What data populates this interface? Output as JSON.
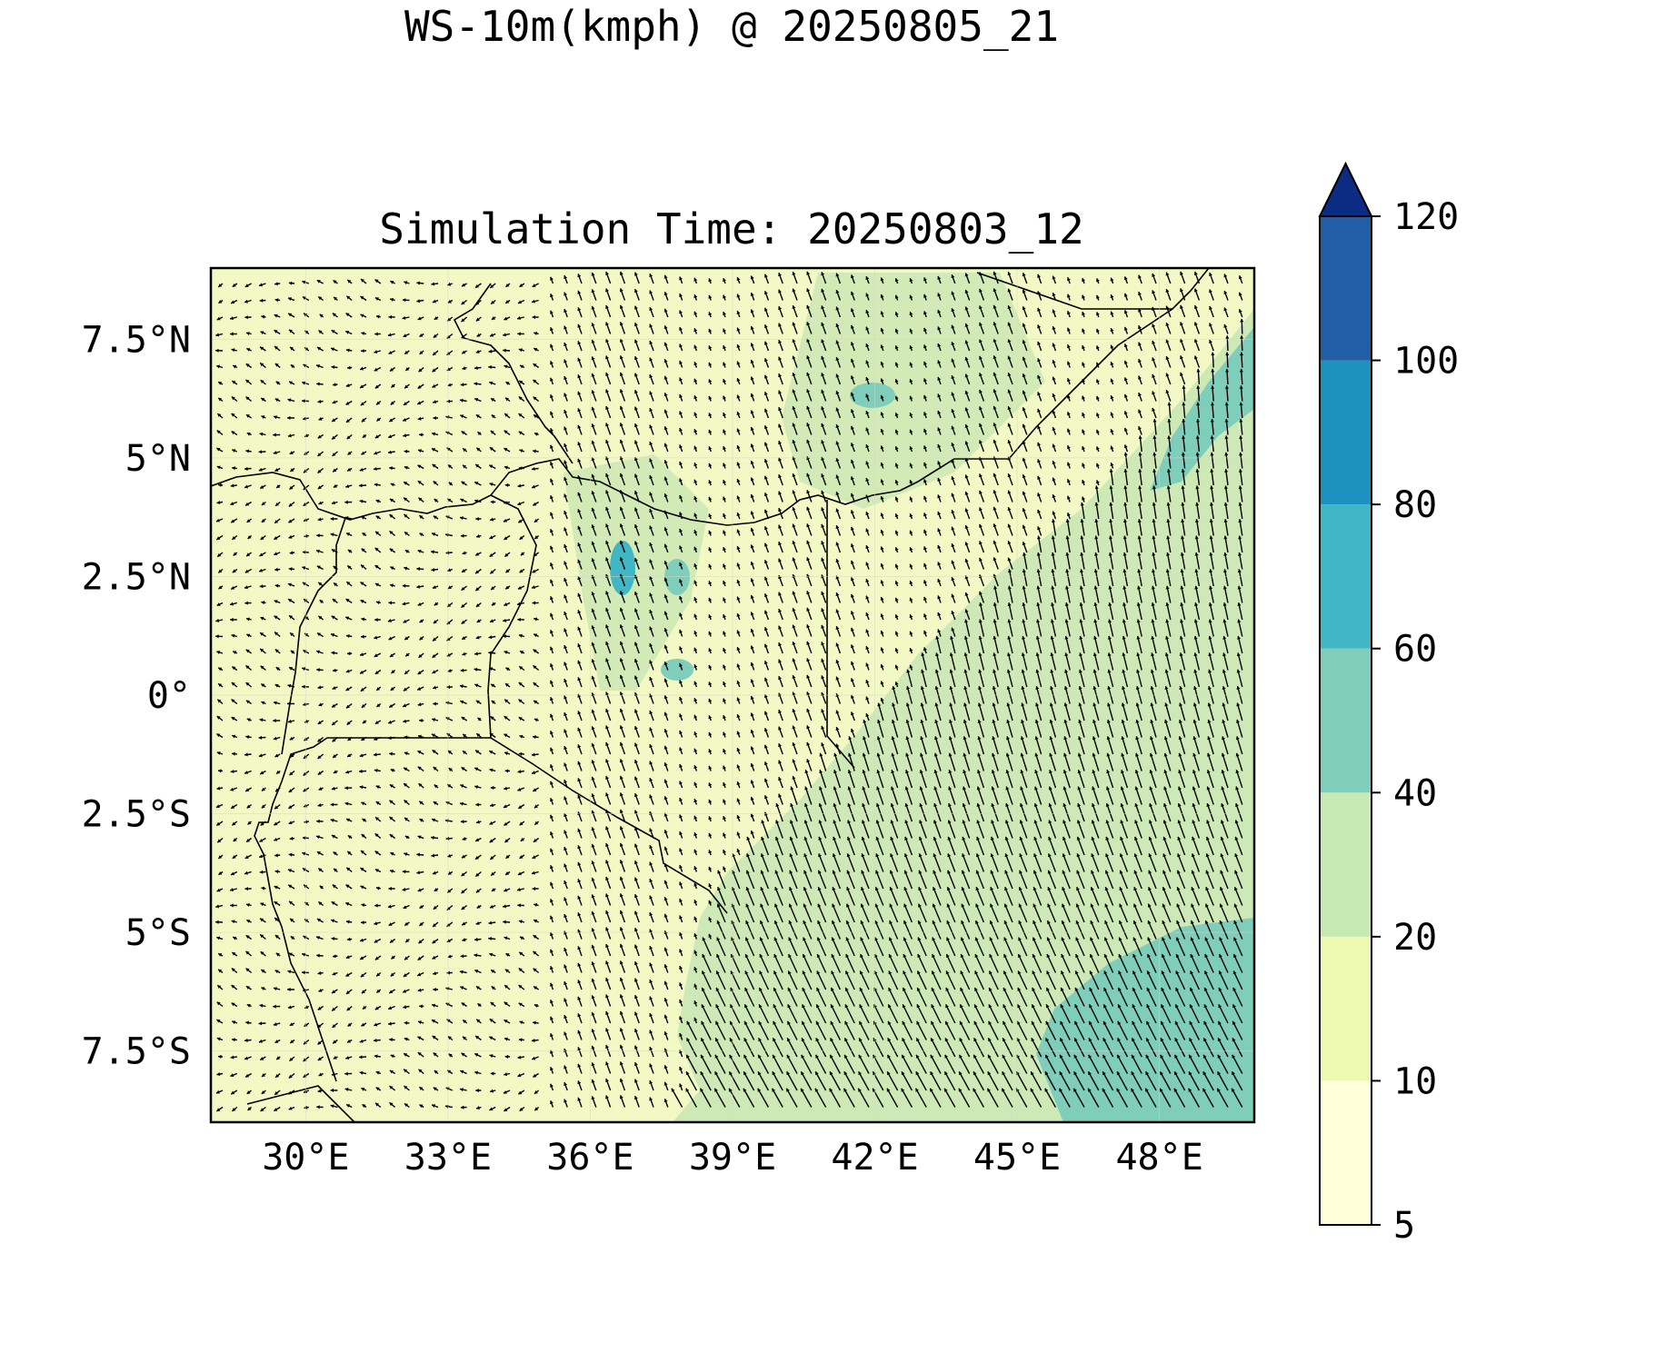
{
  "title": {
    "line1": "WS-10m(kmph) @ 20250805_21",
    "line2": "Simulation Time: 20250803_12"
  },
  "map": {
    "region": "East Africa (Kenya, Uganda, Tanzania, Somalia, Ethiopia)",
    "lon_range": [
      28,
      50
    ],
    "lat_range": [
      -9,
      9
    ],
    "x_ticks": [
      "30°E",
      "33°E",
      "36°E",
      "39°E",
      "42°E",
      "45°E",
      "48°E"
    ],
    "x_tick_values": [
      30,
      33,
      36,
      39,
      42,
      45,
      48
    ],
    "y_ticks": [
      "7.5°N",
      "5°N",
      "2.5°N",
      "0°",
      "2.5°S",
      "5°S",
      "7.5°S"
    ],
    "y_tick_values": [
      7.5,
      5,
      2.5,
      0,
      -2.5,
      -5,
      -7.5
    ]
  },
  "colorbar": {
    "levels": [
      "5",
      "10",
      "20",
      "40",
      "60",
      "80",
      "100",
      "120"
    ],
    "level_values": [
      5,
      10,
      20,
      40,
      60,
      80,
      100,
      120
    ],
    "colors": [
      "#ffffd9",
      "#edf8b1",
      "#c7e9b4",
      "#7fcdbb",
      "#41b6c4",
      "#1d91c0",
      "#225ea8",
      "#0c2c84"
    ],
    "extend": "max"
  }
}
